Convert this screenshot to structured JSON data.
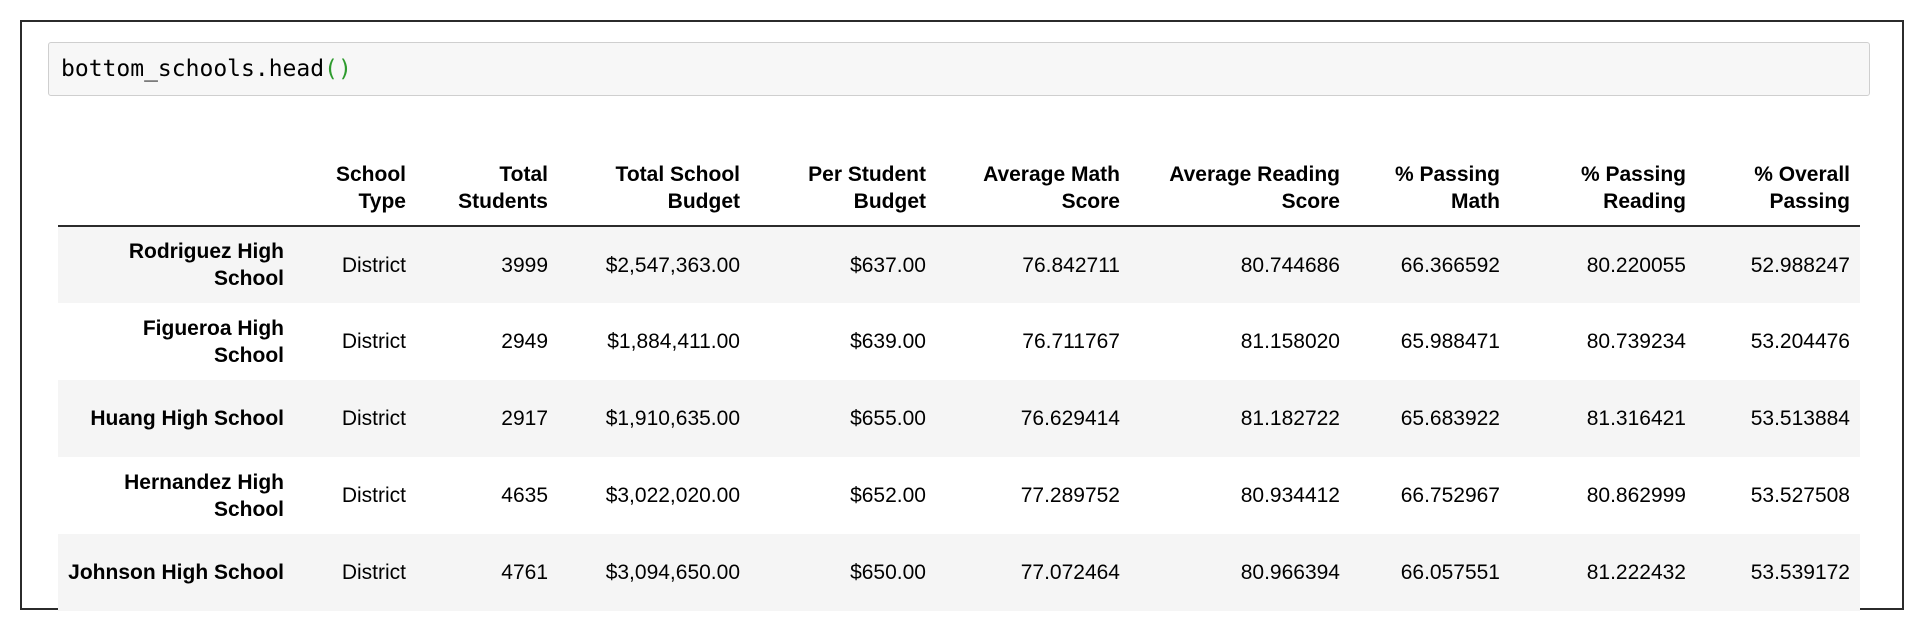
{
  "cell": {
    "code_text": "bottom_schools.head",
    "code_parens": "()"
  },
  "dataframe": {
    "columns": [
      "",
      "School Type",
      "Total Students",
      "Total School Budget",
      "Per Student Budget",
      "Average Math Score",
      "Average Reading Score",
      "% Passing Math",
      "% Passing Reading",
      "% Overall Passing"
    ],
    "rows": [
      {
        "index": "Rodriguez High School",
        "cells": [
          "District",
          "3999",
          "$2,547,363.00",
          "$637.00",
          "76.842711",
          "80.744686",
          "66.366592",
          "80.220055",
          "52.988247"
        ]
      },
      {
        "index": "Figueroa High School",
        "cells": [
          "District",
          "2949",
          "$1,884,411.00",
          "$639.00",
          "76.711767",
          "81.158020",
          "65.988471",
          "80.739234",
          "53.204476"
        ]
      },
      {
        "index": "Huang High School",
        "cells": [
          "District",
          "2917",
          "$1,910,635.00",
          "$655.00",
          "76.629414",
          "81.182722",
          "65.683922",
          "81.316421",
          "53.513884"
        ]
      },
      {
        "index": "Hernandez High School",
        "cells": [
          "District",
          "4635",
          "$3,022,020.00",
          "$652.00",
          "77.289752",
          "80.934412",
          "66.752967",
          "80.862999",
          "53.527508"
        ]
      },
      {
        "index": "Johnson High School",
        "cells": [
          "District",
          "4761",
          "$3,094,650.00",
          "$650.00",
          "77.072464",
          "80.966394",
          "66.057551",
          "81.222432",
          "53.539172"
        ]
      }
    ]
  },
  "colors": {
    "code_background": "#f7f7f7",
    "paren_color": "#2e9b2e",
    "row_stripe": "#f5f5f5",
    "border": "#2b2b2b"
  }
}
